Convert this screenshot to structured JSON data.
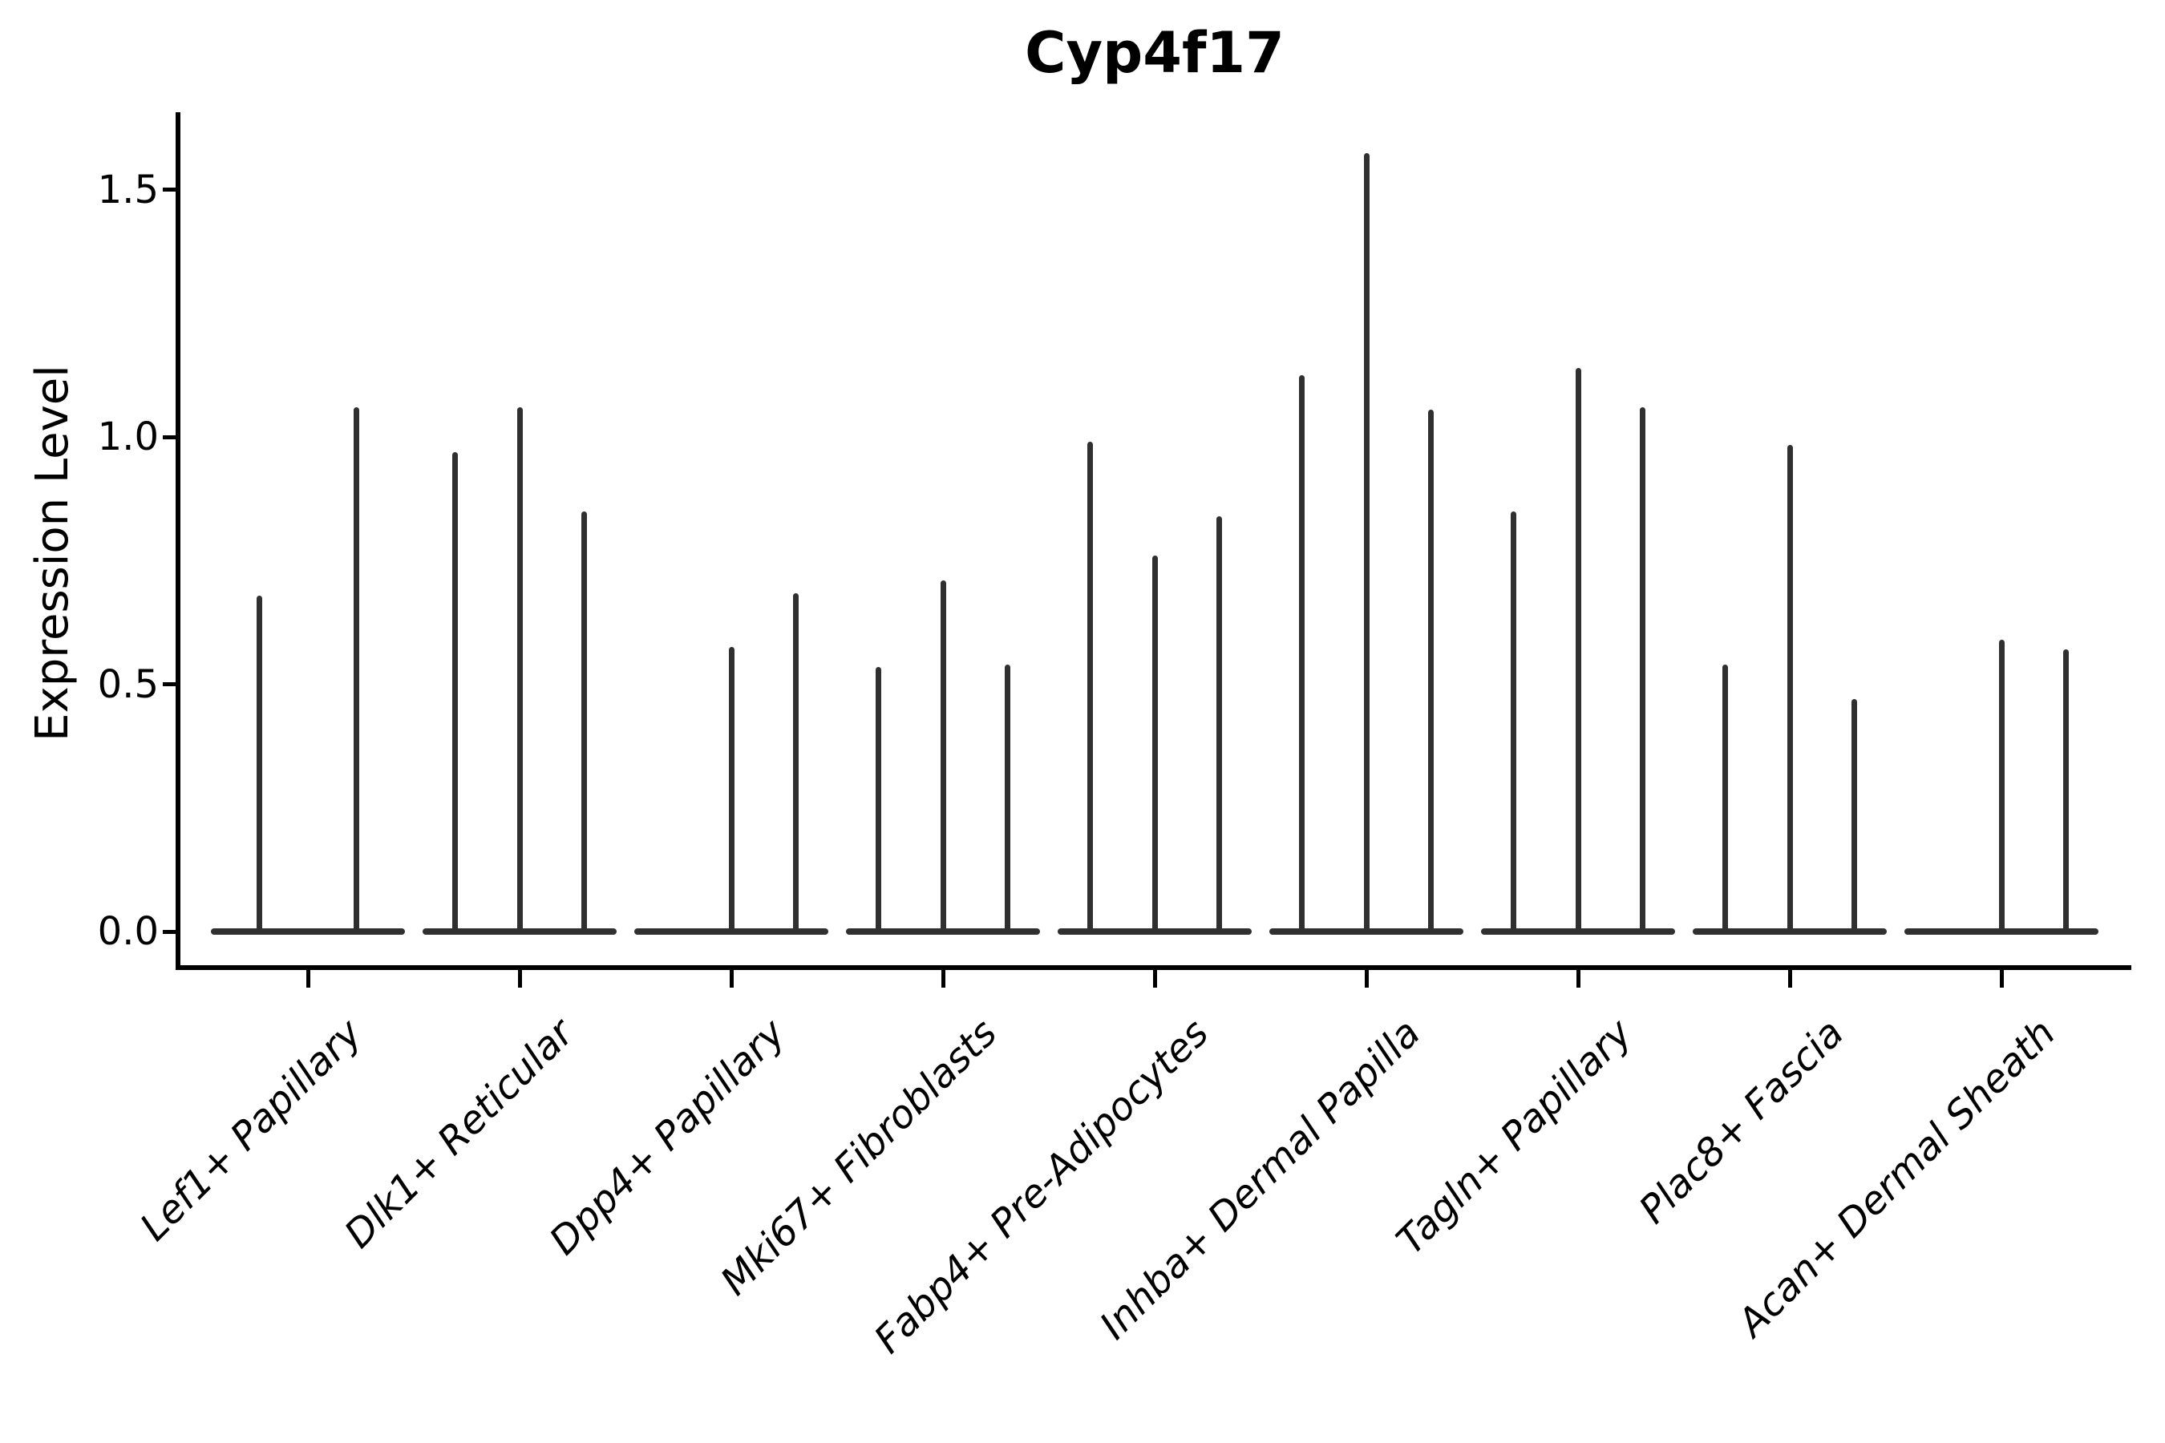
{
  "title": "Cyp4f17",
  "ylabel": "Expression Level",
  "colors": {
    "violin": "#303030",
    "axis": "#000000",
    "background": "#ffffff",
    "text": "#000000"
  },
  "chart_data": {
    "type": "violin",
    "title": "Cyp4f17",
    "xlabel": "",
    "ylabel": "Expression Level",
    "ylim": [
      0,
      1.66
    ],
    "yticks": [
      0.0,
      0.5,
      1.0,
      1.5
    ],
    "grid": false,
    "legend": "none",
    "categories": [
      "Lef1+ Papillary",
      "Dlk1+ Reticular",
      "Dpp4+ Papillary",
      "Mki67+ Fibroblasts",
      "Fabp4+ Pre-Adipocytes",
      "Inhba+ Dermal Papilla",
      "Tagln+ Papillary",
      "Plac8+ Fascia",
      "Acan+ Dermal Sheath"
    ],
    "groups": [
      {
        "category": "Lef1+ Papillary",
        "violin_max_values": [
          0.68,
          1.06
        ]
      },
      {
        "category": "Dlk1+ Reticular",
        "violin_max_values": [
          0.97,
          1.06,
          0.85
        ]
      },
      {
        "category": "Dpp4+ Papillary",
        "violin_max_values": [
          0.0,
          0.575,
          0.685
        ]
      },
      {
        "category": "Mki67+ Fibroblasts",
        "violin_max_values": [
          0.535,
          0.71,
          0.54
        ]
      },
      {
        "category": "Fabp4+ Pre-Adipocytes",
        "violin_max_values": [
          0.99,
          0.76,
          0.84
        ]
      },
      {
        "category": "Inhba+ Dermal Papilla",
        "violin_max_values": [
          1.125,
          1.575,
          1.055
        ]
      },
      {
        "category": "Tagln+ Papillary",
        "violin_max_values": [
          0.85,
          1.14,
          1.06
        ]
      },
      {
        "category": "Plac8+ Fascia",
        "violin_max_values": [
          0.54,
          0.985,
          0.47
        ]
      },
      {
        "category": "Acan+ Dermal Sheath",
        "violin_max_values": [
          0.0,
          0.59,
          0.57
        ]
      }
    ]
  }
}
